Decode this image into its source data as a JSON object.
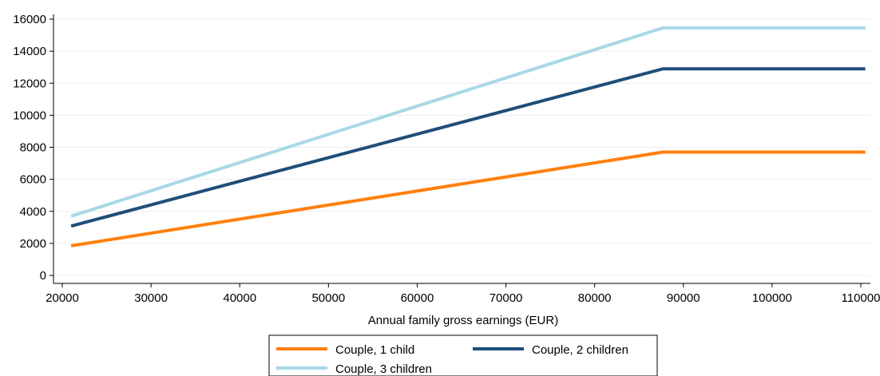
{
  "chart_data": {
    "type": "line",
    "title": "",
    "xlabel": "Annual family gross earnings (EUR)",
    "ylabel": "",
    "xlim": [
      20000,
      110000
    ],
    "ylim": [
      0,
      16000
    ],
    "xticks": [
      20000,
      30000,
      40000,
      50000,
      60000,
      70000,
      80000,
      90000,
      100000,
      110000
    ],
    "yticks": [
      0,
      2000,
      4000,
      6000,
      8000,
      10000,
      12000,
      14000,
      16000
    ],
    "grid": true,
    "legend_position": "bottom",
    "series": [
      {
        "name": "Couple, 1 child",
        "color": "#ff7f0e",
        "points": [
          [
            21000,
            1850
          ],
          [
            87700,
            7700
          ],
          [
            110500,
            7700
          ]
        ]
      },
      {
        "name": "Couple, 2 children",
        "color": "#1f4e79",
        "points": [
          [
            21000,
            3080
          ],
          [
            87700,
            12900
          ],
          [
            110500,
            12900
          ]
        ]
      },
      {
        "name": "Couple, 3 children",
        "color": "#a8d8e6",
        "points": [
          [
            21000,
            3700
          ],
          [
            87700,
            15450
          ],
          [
            110500,
            15450
          ]
        ]
      }
    ]
  }
}
